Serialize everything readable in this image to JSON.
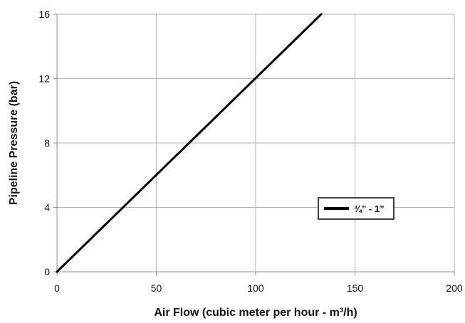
{
  "chart_data": {
    "type": "line",
    "title": "",
    "xlabel": "Air Flow (cubic meter per hour - m³/h)",
    "ylabel": "Pipeline Pressure (bar)",
    "xlim": [
      0,
      200
    ],
    "ylim": [
      0,
      16
    ],
    "x_ticks": [
      0,
      50,
      100,
      150,
      200
    ],
    "y_ticks": [
      0,
      4,
      8,
      12,
      16
    ],
    "x_tick_labels": [
      "0",
      "50",
      "100",
      "150",
      "200"
    ],
    "y_tick_labels": [
      "0",
      "4",
      "8",
      "12",
      "16"
    ],
    "grid": true,
    "legend": {
      "placement": "right",
      "entries": [
        "¾” - 1”"
      ]
    },
    "series": [
      {
        "name": "¾” - 1”",
        "color": "#000000",
        "x": [
          0,
          133
        ],
        "y": [
          0,
          16
        ]
      }
    ]
  },
  "colors": {
    "grid": "#b3b3b3",
    "axis": "#8c8c8c",
    "text": "#111111",
    "series": "#000000"
  }
}
